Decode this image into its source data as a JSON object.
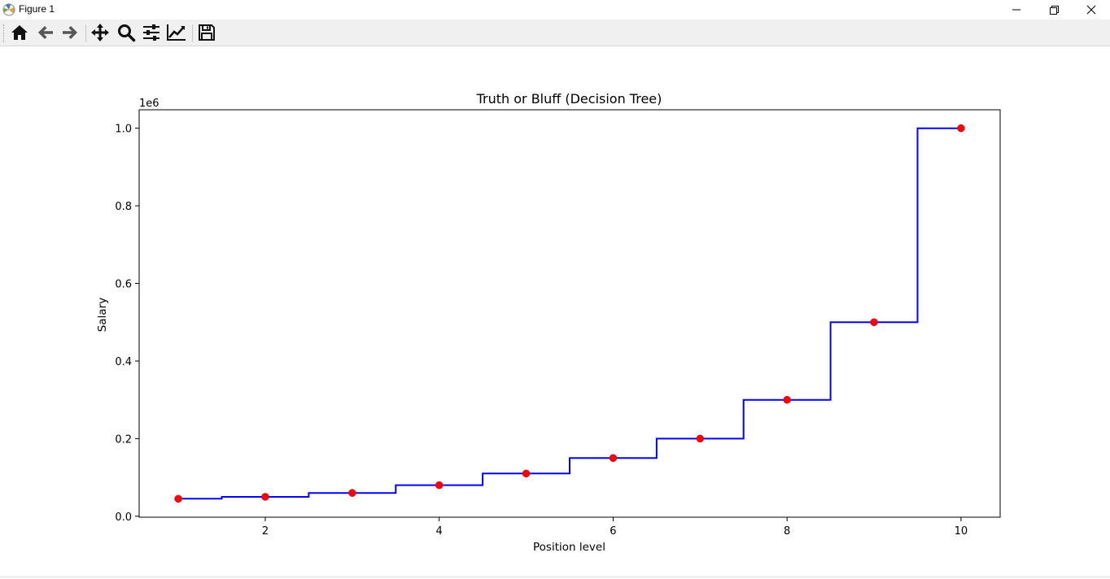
{
  "window": {
    "title": "Figure 1",
    "icons": {
      "app": "matplotlib-icon",
      "minimize": "minimize-icon",
      "maximize": "restore-icon",
      "close": "close-icon"
    }
  },
  "toolbar": {
    "buttons": [
      {
        "name": "home-button",
        "icon": "home-icon"
      },
      {
        "name": "back-button",
        "icon": "arrow-left-icon"
      },
      {
        "name": "forward-button",
        "icon": "arrow-right-icon"
      },
      {
        "name": "pan-button",
        "icon": "move-icon"
      },
      {
        "name": "zoom-button",
        "icon": "zoom-icon"
      },
      {
        "name": "configure-subplots-button",
        "icon": "sliders-icon"
      },
      {
        "name": "edit-axis-button",
        "icon": "line-chart-icon"
      },
      {
        "name": "save-button",
        "icon": "floppy-disk-icon"
      }
    ]
  },
  "colors": {
    "line": "#0000ff",
    "points": "#ff0000",
    "points_edge": "#cc0000"
  },
  "chart_data": {
    "type": "line",
    "title": "Truth or Bluff (Decision Tree)",
    "xlabel": "Position level",
    "ylabel": "Salary",
    "y_offset_text": "1e6",
    "xlim": [
      0.55,
      10.45
    ],
    "ylim": [
      -0.0025,
      1.0475
    ],
    "xticks": [
      2,
      4,
      6,
      8,
      10
    ],
    "xtick_labels": [
      "2",
      "4",
      "6",
      "8",
      "10"
    ],
    "yticks": [
      0.0,
      0.2,
      0.4,
      0.6,
      0.8,
      1.0
    ],
    "ytick_labels": [
      "0.0",
      "0.2",
      "0.4",
      "0.6",
      "0.8",
      "1.0"
    ],
    "grid": false,
    "series": [
      {
        "kind": "scatter",
        "color": "red",
        "x": [
          1,
          2,
          3,
          4,
          5,
          6,
          7,
          8,
          9,
          10
        ],
        "y": [
          45000,
          50000,
          60000,
          80000,
          110000,
          150000,
          200000,
          300000,
          500000,
          1000000
        ]
      },
      {
        "kind": "step",
        "color": "blue",
        "x": [
          1,
          1.5,
          1.5,
          2.5,
          2.5,
          3.5,
          3.5,
          4.5,
          4.5,
          5.5,
          5.5,
          6.5,
          6.5,
          7.5,
          7.5,
          8.5,
          8.5,
          9.5,
          9.5,
          10
        ],
        "y": [
          45000,
          45000,
          50000,
          50000,
          60000,
          60000,
          80000,
          80000,
          110000,
          110000,
          150000,
          150000,
          200000,
          200000,
          300000,
          300000,
          500000,
          500000,
          1000000,
          1000000
        ]
      }
    ]
  }
}
